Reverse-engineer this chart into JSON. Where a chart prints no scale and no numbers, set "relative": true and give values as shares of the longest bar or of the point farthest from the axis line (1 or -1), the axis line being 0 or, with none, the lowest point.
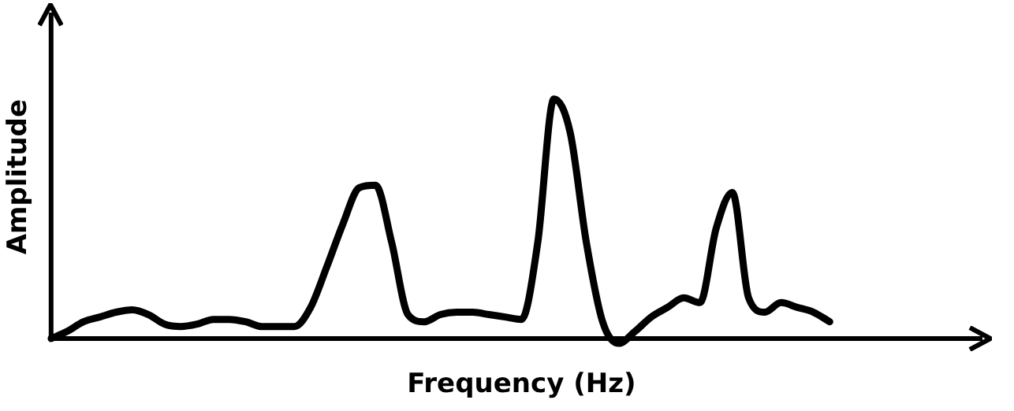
{
  "chart_data": {
    "type": "line",
    "xlabel": "Frequency (Hz)",
    "ylabel": "Amplitude",
    "relative": true,
    "categories": [
      null,
      null,
      null,
      null,
      null,
      null,
      null,
      null,
      null,
      null,
      null,
      null,
      null,
      null,
      null,
      null,
      null,
      null,
      null,
      null,
      null,
      null,
      null,
      null,
      null,
      null,
      null,
      null,
      null,
      null,
      null,
      null,
      null,
      null,
      null,
      null,
      null,
      null,
      null,
      null,
      null,
      null,
      null,
      null,
      null,
      null,
      null,
      null,
      null,
      null,
      null,
      null,
      null,
      null,
      null,
      null,
      null,
      null,
      null
    ],
    "series": [
      {
        "color": "#000000",
        "values": [
          0,
          0.03,
          0.07,
          0.09,
          0.11,
          0.12,
          0.1,
          0.06,
          0.05,
          0.06,
          0.08,
          0.08,
          0.07,
          0.05,
          0.05,
          0.05,
          0.13,
          0.3,
          0.48,
          0.63,
          0.64,
          0.4,
          0.1,
          0.07,
          0.1,
          0.11,
          0.11,
          0.1,
          0.09,
          0.08,
          0.4,
          1,
          0.86,
          0.4,
          0.07,
          -0.02,
          0.03,
          0.09,
          0.13,
          0.17,
          0.15,
          0.46,
          0.61,
          0.17,
          0.11,
          0.15,
          0.13,
          0.11,
          0.07,
          null,
          null,
          null,
          null,
          null,
          null,
          null,
          null,
          null,
          null
        ]
      }
    ],
    "grid": false,
    "legend": false,
    "marker": "none",
    "line_style": "solid",
    "tick_labels": false
  }
}
